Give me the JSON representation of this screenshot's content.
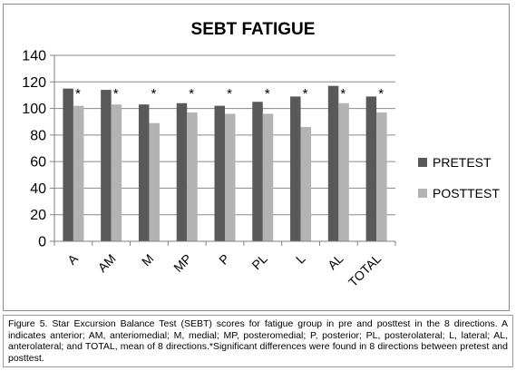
{
  "chart_data": {
    "type": "bar",
    "title": "SEBT FATIGUE",
    "xlabel": "",
    "ylabel": "",
    "categories": [
      "A",
      "AM",
      "M",
      "MP",
      "P",
      "PL",
      "L",
      "AL",
      "TOTAL"
    ],
    "series": [
      {
        "name": "PRETEST",
        "color": "#595959",
        "values": [
          115,
          114,
          103,
          104,
          102,
          105,
          109,
          117,
          109
        ]
      },
      {
        "name": "POSTTEST",
        "color": "#b3b3b3",
        "values": [
          102,
          103,
          89,
          97,
          96,
          96,
          86,
          104,
          97
        ]
      }
    ],
    "ylim": [
      0,
      140
    ],
    "yticks": [
      0,
      20,
      40,
      60,
      80,
      100,
      120,
      140
    ],
    "grid": true,
    "legend": "right",
    "annotation_symbol": "*"
  },
  "caption": "Figure 5. Star Excursion Balance Test (SEBT) scores for fatigue group in pre and posttest in the 8 directions. A indicates anterior; AM, anteriomedial; M, medial; MP, posteromedial; P, posterior; PL, posterolateral; L, lateral; AL, anterolateral; and TOTAL, mean of 8 directions.*Significant differences were found in 8 directions between pretest and posttest."
}
